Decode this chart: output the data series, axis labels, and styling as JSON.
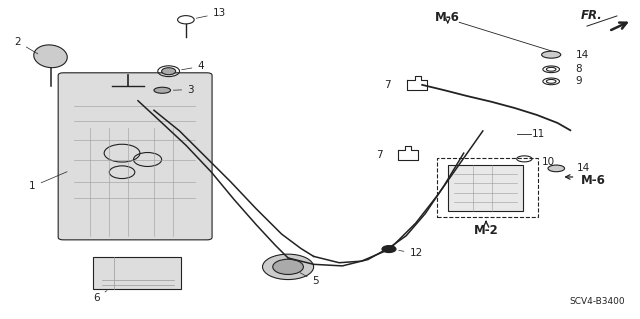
{
  "bg_color": "#ffffff",
  "diagram_code": "SCV4-B3400",
  "fig_width": 6.4,
  "fig_height": 3.19,
  "dpi": 100,
  "fs": 7.5,
  "fsb": 8.5,
  "dgray": "#222222",
  "lgray": "#999999",
  "cccc": "#cccccc",
  "aaaa": "#aaaaaa",
  "dddd": "#dddddd",
  "e8e8": "#e8e8e8"
}
